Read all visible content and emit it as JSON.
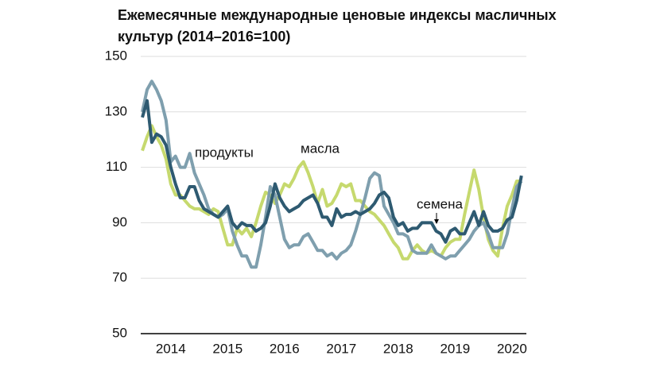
{
  "chart_data": {
    "type": "line",
    "title": "Ежемесячные международные ценовые индексы масличных",
    "subtitle": "культур (2014–2016=100)",
    "categories": [
      null,
      null,
      null,
      null,
      null,
      null,
      "2014",
      null,
      null,
      null,
      null,
      null,
      null,
      null,
      null,
      null,
      null,
      null,
      "2015",
      null,
      null,
      null,
      null,
      null,
      null,
      null,
      null,
      null,
      null,
      null,
      "2016",
      null,
      null,
      null,
      null,
      null,
      null,
      null,
      null,
      null,
      null,
      null,
      "2017",
      null,
      null,
      null,
      null,
      null,
      null,
      null,
      null,
      null,
      null,
      null,
      "2018",
      null,
      null,
      null,
      null,
      null,
      null,
      null,
      null,
      null,
      null,
      null,
      "2019",
      null,
      null,
      null,
      null,
      null,
      null,
      null,
      null,
      null,
      null,
      null,
      "2020",
      null,
      null
    ],
    "series": [
      {
        "name": "масла",
        "color": "#c6d96e",
        "values": [
          116,
          121,
          125,
          121,
          118,
          113,
          104,
          100,
          100,
          98,
          96,
          95,
          95,
          94,
          93,
          95,
          94,
          88,
          82,
          82,
          88,
          86,
          88,
          85,
          90,
          96,
          101,
          100,
          97,
          100,
          104,
          103,
          106,
          110,
          112,
          108,
          103,
          97,
          102,
          96,
          97,
          100,
          104,
          103,
          104,
          98,
          98,
          96,
          94,
          93,
          91,
          89,
          86,
          83,
          81,
          77,
          77,
          80,
          82,
          80,
          79,
          80,
          79,
          78,
          81,
          83,
          84,
          84,
          93,
          101,
          109,
          102,
          92,
          84,
          80,
          78,
          88,
          96,
          100,
          105,
          105
        ]
      },
      {
        "name": "продукты",
        "color": "#7f9fae",
        "values": [
          130,
          138,
          141,
          138,
          134,
          127,
          112,
          114,
          110,
          110,
          115,
          108,
          104,
          100,
          95,
          93,
          92,
          93,
          95,
          87,
          82,
          78,
          78,
          74,
          74,
          82,
          92,
          103,
          100,
          92,
          84,
          81,
          82,
          82,
          85,
          86,
          83,
          80,
          80,
          78,
          79,
          77,
          79,
          80,
          82,
          87,
          93,
          99,
          106,
          108,
          107,
          96,
          93,
          90,
          86,
          86,
          85,
          80,
          79,
          79,
          79,
          82,
          79,
          78,
          77,
          78,
          78,
          80,
          82,
          84,
          87,
          89,
          90,
          86,
          81,
          81,
          81,
          86,
          95,
          103,
          105
        ]
      },
      {
        "name": "семена",
        "color": "#2e5a71",
        "values": [
          128,
          134,
          119,
          122,
          121,
          118,
          110,
          104,
          99,
          99,
          103,
          103,
          98,
          95,
          94,
          93,
          92,
          94,
          96,
          90,
          88,
          90,
          89,
          89,
          87,
          88,
          90,
          96,
          104,
          99,
          96,
          94,
          95,
          96,
          98,
          99,
          100,
          97,
          92,
          92,
          89,
          95,
          92,
          93,
          93,
          94,
          93,
          94,
          95,
          97,
          100,
          101,
          99,
          92,
          89,
          90,
          87,
          88,
          88,
          90,
          90,
          90,
          87,
          86,
          83,
          87,
          88,
          86,
          86,
          90,
          94,
          89,
          94,
          89,
          87,
          87,
          88,
          91,
          92,
          98,
          107
        ]
      }
    ],
    "ylim": [
      50,
      150
    ],
    "yticks": [
      50,
      70,
      90,
      110,
      130,
      150
    ],
    "grid": true
  }
}
